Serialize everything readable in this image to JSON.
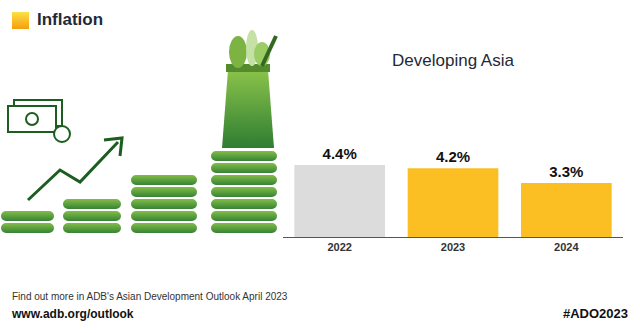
{
  "header": {
    "title": "Inflation"
  },
  "chart_data": {
    "type": "bar",
    "title": "Developing Asia",
    "categories": [
      "2022",
      "2023",
      "2024"
    ],
    "values": [
      4.4,
      4.2,
      3.3
    ],
    "value_labels": [
      "4.4%",
      "4.2%",
      "3.3%"
    ],
    "colors": [
      "#dcdcdc",
      "#fbbf24",
      "#fbbf24"
    ],
    "ylim": [
      0,
      8
    ],
    "grid": false,
    "data_labels": true,
    "tick_labels": "x"
  },
  "footer": {
    "note": "Find out more in ADB's Asian Development Outlook April 2023",
    "url": "www.adb.org/outlook",
    "hashtag": "#ADO2023"
  }
}
